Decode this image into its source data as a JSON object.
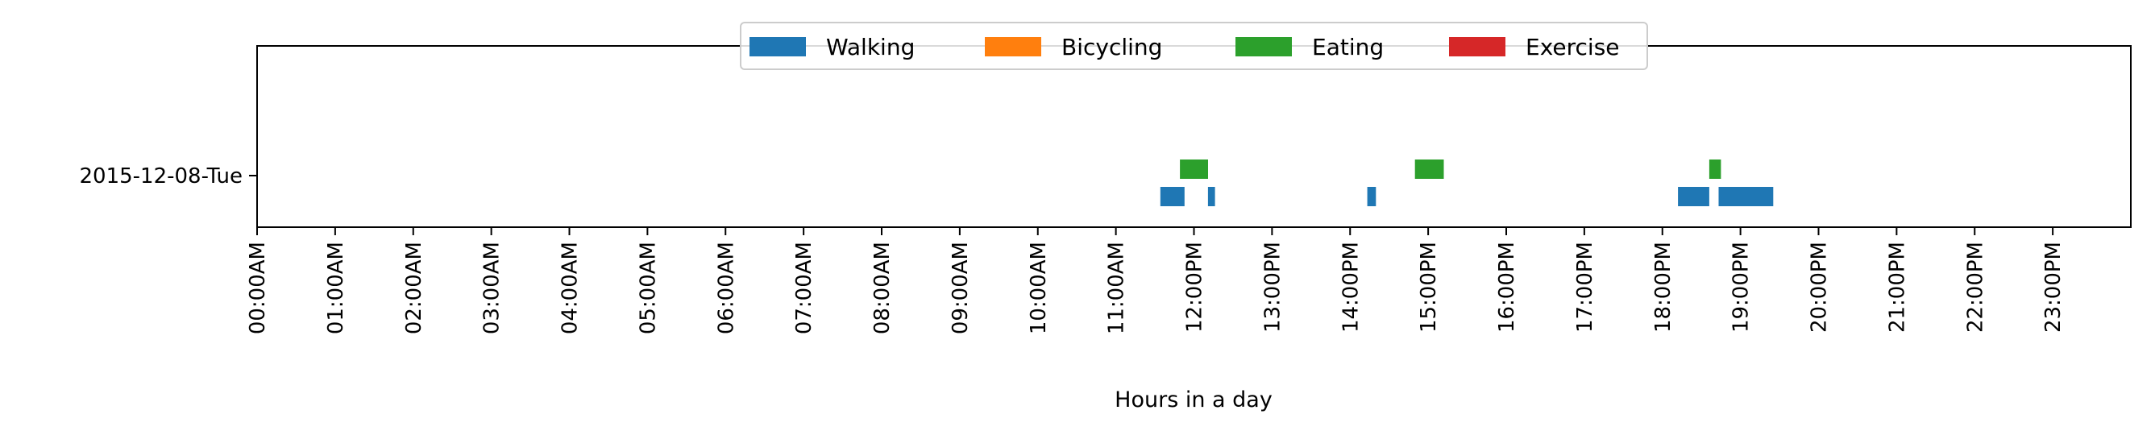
{
  "chart_data": {
    "type": "timeline",
    "xlabel": "Hours in a day",
    "xlim": [
      0,
      24
    ],
    "x_ticks": [
      "00:00AM",
      "01:00AM",
      "02:00AM",
      "03:00AM",
      "04:00AM",
      "05:00AM",
      "06:00AM",
      "07:00AM",
      "08:00AM",
      "09:00AM",
      "10:00AM",
      "11:00AM",
      "12:00PM",
      "13:00PM",
      "14:00PM",
      "15:00PM",
      "16:00PM",
      "17:00PM",
      "18:00PM",
      "19:00PM",
      "20:00PM",
      "21:00PM",
      "22:00PM",
      "23:00PM"
    ],
    "rows": [
      "2015-12-08-Tue"
    ],
    "legend_position": "top-center",
    "categories": [
      {
        "name": "Walking",
        "color": "#1f77b4"
      },
      {
        "name": "Bicycling",
        "color": "#ff7f0e"
      },
      {
        "name": "Eating",
        "color": "#2ca02c"
      },
      {
        "name": "Exercise",
        "color": "#d62728"
      }
    ],
    "series": [
      {
        "name": "Walking",
        "row": "2015-12-08-Tue",
        "intervals": [
          [
            11.57,
            11.88
          ],
          [
            12.18,
            12.27
          ],
          [
            14.22,
            14.33
          ],
          [
            18.2,
            18.6
          ],
          [
            18.72,
            19.42
          ]
        ]
      },
      {
        "name": "Bicycling",
        "row": "2015-12-08-Tue",
        "intervals": []
      },
      {
        "name": "Eating",
        "row": "2015-12-08-Tue",
        "intervals": [
          [
            11.82,
            12.18
          ],
          [
            14.83,
            15.2
          ],
          [
            18.6,
            18.75
          ]
        ]
      },
      {
        "name": "Exercise",
        "row": "2015-12-08-Tue",
        "intervals": []
      }
    ]
  }
}
